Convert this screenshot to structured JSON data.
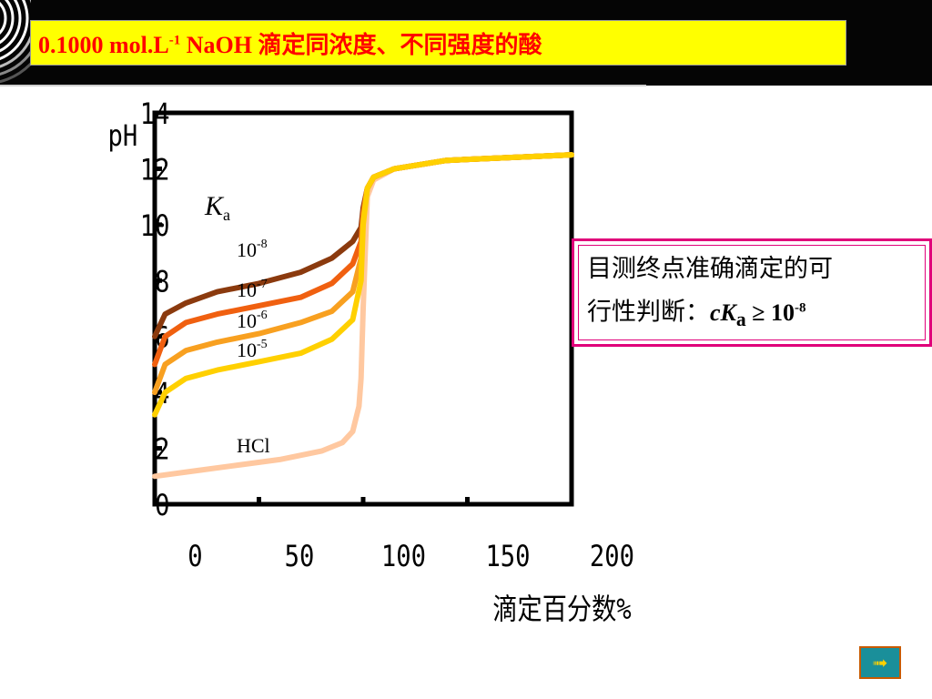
{
  "header": {
    "title_prefix": "0.1000 mol.L",
    "title_sup": "-1",
    "title_suffix": " NaOH 滴定同浓度、不同强度的酸"
  },
  "note": {
    "line1": "目测终点准确滴定的可",
    "line2_prefix": "行性判断：",
    "cond_c": "c",
    "cond_K": "K",
    "cond_sub": "a",
    "cond_op": " ≥ 10",
    "cond_sup": "-8"
  },
  "colors": {
    "title_bg": "#ffff00",
    "title_text": "#ff0000",
    "note_border": "#e0007a",
    "ka_1e-8": "#8b3a0e",
    "ka_1e-7": "#f06010",
    "ka_1e-6": "#f8a020",
    "ka_1e-5": "#ffd000",
    "hcl": "#ffc8a0"
  },
  "nav_icon": "next-arrow-icon",
  "chart_data": {
    "type": "line",
    "xlabel": "滴定百分数%",
    "ylabel": "pH",
    "xlim": [
      0,
      200
    ],
    "ylim": [
      0,
      14
    ],
    "xticks": [
      0,
      50,
      100,
      150,
      200
    ],
    "yticks": [
      0,
      2,
      4,
      6,
      8,
      10,
      12,
      14
    ],
    "legend_title": "Ka",
    "series": [
      {
        "name": "10-8",
        "label_base": "10",
        "label_exp": "-8",
        "color": "#8b3a0e",
        "x": [
          0,
          5,
          15,
          30,
          50,
          70,
          85,
          95,
          99,
          100,
          102,
          105,
          115,
          140,
          200
        ],
        "y": [
          6.0,
          6.8,
          7.2,
          7.6,
          7.9,
          8.3,
          8.8,
          9.4,
          9.9,
          10.6,
          11.3,
          11.7,
          12.0,
          12.3,
          12.5
        ]
      },
      {
        "name": "10-7",
        "label_base": "10",
        "label_exp": "-7",
        "color": "#f06010",
        "x": [
          0,
          5,
          15,
          30,
          50,
          70,
          85,
          95,
          99,
          100,
          102,
          105,
          115,
          140,
          200
        ],
        "y": [
          5.0,
          6.0,
          6.5,
          6.8,
          7.1,
          7.4,
          7.9,
          8.6,
          9.4,
          10.4,
          11.3,
          11.7,
          12.0,
          12.3,
          12.5
        ]
      },
      {
        "name": "10-6",
        "label_base": "10",
        "label_exp": "-6",
        "color": "#f8a020",
        "x": [
          0,
          5,
          15,
          30,
          50,
          70,
          85,
          95,
          99,
          100,
          102,
          105,
          115,
          140,
          200
        ],
        "y": [
          4.0,
          5.0,
          5.5,
          5.8,
          6.1,
          6.5,
          6.9,
          7.6,
          8.8,
          10.2,
          11.3,
          11.7,
          12.0,
          12.3,
          12.5
        ]
      },
      {
        "name": "10-5",
        "label_base": "10",
        "label_exp": "-5",
        "color": "#ffd000",
        "x": [
          0,
          5,
          15,
          30,
          50,
          70,
          85,
          95,
          99,
          100,
          102,
          105,
          115,
          140,
          200
        ],
        "y": [
          3.2,
          4.0,
          4.5,
          4.8,
          5.1,
          5.4,
          5.9,
          6.6,
          8.0,
          10.0,
          11.3,
          11.7,
          12.0,
          12.3,
          12.5
        ]
      },
      {
        "name": "HCl",
        "label_base": "HCl",
        "label_exp": "",
        "color": "#ffc8a0",
        "x": [
          0,
          20,
          40,
          60,
          80,
          90,
          95,
          98,
          99,
          100,
          102,
          105,
          115,
          140,
          200
        ],
        "y": [
          1.0,
          1.2,
          1.4,
          1.6,
          1.9,
          2.2,
          2.6,
          3.5,
          4.5,
          7.0,
          11.0,
          11.6,
          12.0,
          12.3,
          12.5
        ]
      }
    ]
  }
}
